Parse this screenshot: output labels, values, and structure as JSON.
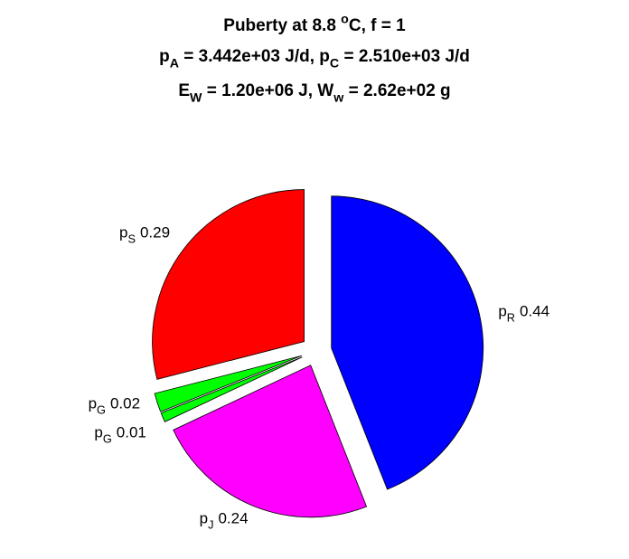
{
  "chart_data": {
    "type": "pie",
    "title": [
      [
        {
          "text": "Puberty at 8.8 "
        },
        {
          "sup": "o"
        },
        {
          "text": "C, f = 1"
        }
      ],
      [
        {
          "text": "p"
        },
        {
          "sub": "A"
        },
        {
          "text": " = 3.442e+03 J/d,  p"
        },
        {
          "sub": "C"
        },
        {
          "text": " = 2.510e+03 J/d"
        }
      ],
      [
        {
          "text": "E"
        },
        {
          "sub": "W"
        },
        {
          "text": " = 1.20e+06 J, W"
        },
        {
          "sub": "w"
        },
        {
          "text": " = 2.62e+02 g"
        }
      ]
    ],
    "categories": [
      [
        {
          "text": "p"
        },
        {
          "sub": "R"
        }
      ],
      [
        {
          "text": "p"
        },
        {
          "sub": "J"
        }
      ],
      [
        {
          "text": "p"
        },
        {
          "sub": "G"
        }
      ],
      [
        {
          "text": "p"
        },
        {
          "sub": "G"
        }
      ],
      [
        {
          "text": "p"
        },
        {
          "sub": "S"
        }
      ]
    ],
    "values": [
      0.44,
      0.24,
      0.01,
      0.02,
      0.29
    ],
    "colors": [
      "#0000ff",
      "#ff00ff",
      "#00ff00",
      "#00ff00",
      "#ff0000"
    ],
    "exploded": true
  }
}
